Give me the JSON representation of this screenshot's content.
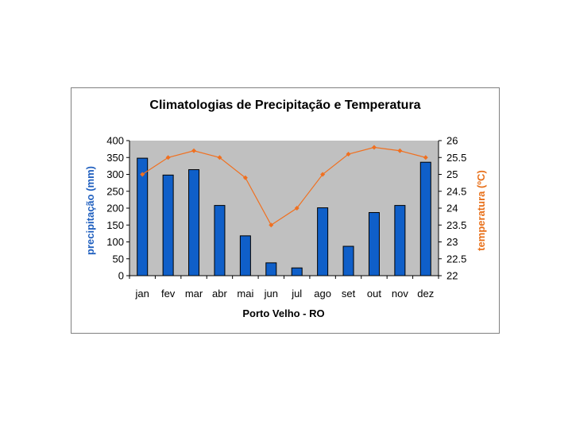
{
  "chart_data": {
    "type": "bar+line",
    "title": "Climatologias de Precipitação e Temperatura",
    "xlabel": "Porto Velho - RO",
    "categories": [
      "jan",
      "fev",
      "mar",
      "abr",
      "mai",
      "jun",
      "jul",
      "ago",
      "set",
      "out",
      "nov",
      "dez"
    ],
    "series": [
      {
        "name": "precipitação",
        "type": "bar",
        "axis": "left",
        "color": "#0f5fc9",
        "values": [
          348,
          298,
          314,
          208,
          118,
          38,
          23,
          201,
          87,
          187,
          208,
          336
        ]
      },
      {
        "name": "temperatura",
        "type": "line",
        "axis": "right",
        "color": "#f07020",
        "values": [
          25.0,
          25.5,
          25.7,
          25.5,
          24.9,
          23.5,
          24.0,
          25.0,
          25.6,
          25.8,
          25.7,
          25.5
        ]
      }
    ],
    "left_axis": {
      "label": "precipitação (mm)",
      "ylim": [
        0,
        400
      ],
      "ticks": [
        "0",
        "50",
        "100",
        "150",
        "200",
        "250",
        "300",
        "350",
        "400"
      ]
    },
    "right_axis": {
      "label": "temperatura (ºC)",
      "ylim": [
        22,
        26
      ],
      "ticks": [
        "22",
        "22.5",
        "23",
        "23.5",
        "24",
        "24.5",
        "25",
        "25.5",
        "26"
      ]
    },
    "plot_background": "#c0c0c0",
    "grid": false
  }
}
